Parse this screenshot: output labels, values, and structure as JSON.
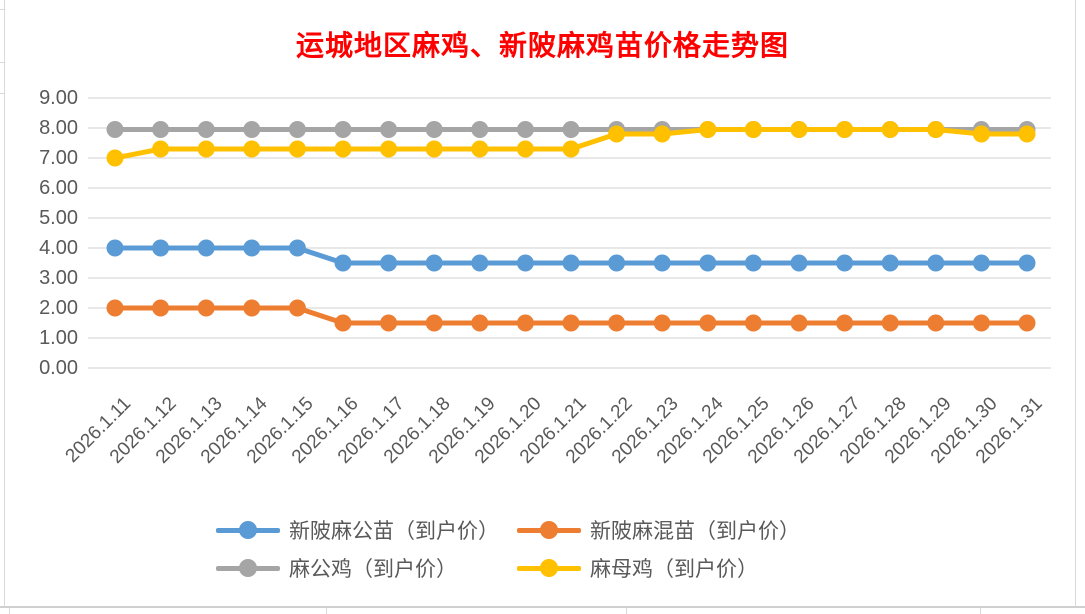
{
  "frame": {
    "background": "#FFFFFF",
    "grid_color": "#D9D9D9",
    "axis_text_color": "#595959",
    "title_color": "#FF0000"
  },
  "chart_data": {
    "type": "line",
    "title": "运城地区麻鸡、新陂麻鸡苗价格走势图",
    "xlabel": "",
    "ylabel": "",
    "ylim": [
      0,
      9
    ],
    "grid": true,
    "legend_position": "bottom",
    "y_ticks": [
      "0.00",
      "1.00",
      "2.00",
      "3.00",
      "4.00",
      "5.00",
      "6.00",
      "7.00",
      "8.00",
      "9.00"
    ],
    "categories": [
      "2026.1.11",
      "2026.1.12",
      "2026.1.13",
      "2026.1.14",
      "2026.1.15",
      "2026.1.16",
      "2026.1.17",
      "2026.1.18",
      "2026.1.19",
      "2026.1.20",
      "2026.1.21",
      "2026.1.22",
      "2026.1.23",
      "2026.1.24",
      "2026.1.25",
      "2026.1.26",
      "2026.1.27",
      "2026.1.28",
      "2026.1.29",
      "2026.1.30",
      "2026.1.31"
    ],
    "series": [
      {
        "name": "新陂麻公苗（到户价）",
        "color": "#5B9BD5",
        "values": [
          4.0,
          4.0,
          4.0,
          4.0,
          4.0,
          3.5,
          3.5,
          3.5,
          3.5,
          3.5,
          3.5,
          3.5,
          3.5,
          3.5,
          3.5,
          3.5,
          3.5,
          3.5,
          3.5,
          3.5,
          3.5
        ]
      },
      {
        "name": "新陂麻混苗（到户价）",
        "color": "#ED7D31",
        "values": [
          2.0,
          2.0,
          2.0,
          2.0,
          2.0,
          1.5,
          1.5,
          1.5,
          1.5,
          1.5,
          1.5,
          1.5,
          1.5,
          1.5,
          1.5,
          1.5,
          1.5,
          1.5,
          1.5,
          1.5,
          1.5
        ]
      },
      {
        "name": "麻公鸡（到户价）",
        "color": "#A5A5A5",
        "values": [
          7.95,
          7.95,
          7.95,
          7.95,
          7.95,
          7.95,
          7.95,
          7.95,
          7.95,
          7.95,
          7.95,
          7.95,
          7.95,
          7.95,
          7.95,
          7.95,
          7.95,
          7.95,
          7.95,
          7.95,
          7.95
        ]
      },
      {
        "name": "麻母鸡（到户价）",
        "color": "#FFC000",
        "values": [
          7.0,
          7.3,
          7.3,
          7.3,
          7.3,
          7.3,
          7.3,
          7.3,
          7.3,
          7.3,
          7.3,
          7.8,
          7.8,
          7.95,
          7.95,
          7.95,
          7.95,
          7.95,
          7.95,
          7.8,
          7.8
        ]
      }
    ]
  }
}
